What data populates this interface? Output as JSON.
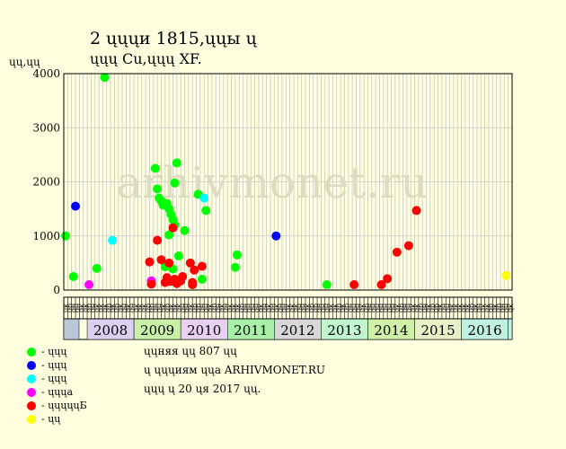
{
  "chart_data": {
    "type": "scatter",
    "title": "2 ųųųи 1815,ųųы ų",
    "subtitle": "ųųų Cu,ųųų XF.",
    "ylabel": "ųų,ųų",
    "watermark": "arhivmonet.ru",
    "ylim": [
      0,
      4000
    ],
    "yticks": [
      0,
      1000,
      2000,
      3000,
      4000
    ],
    "grid": true,
    "x_unit": "month",
    "x_start": "2007-07",
    "x_end": "2017-01",
    "month_codes": [
      "ųк",
      "ųр",
      "ųн",
      "ųн",
      "ųк",
      "ųк",
      "ųр",
      "ųн",
      "ųк",
      "ųк",
      "ųк",
      "ųр",
      "ųк",
      "ųр",
      "ųк",
      "ųн",
      "ųк",
      "ųн",
      "ųк",
      "ųк",
      "ųк",
      "ųр",
      "ųр",
      "ųн",
      "ųн",
      "ųк",
      "ųр",
      "ųк",
      "ųк",
      "ųк",
      "ųн",
      "ųн",
      "ųк",
      "ųр",
      "ųр",
      "ųн",
      "ųн",
      "ųк",
      "ųр",
      "ųн",
      "ųк",
      "ųн",
      "ųк",
      "ųк",
      "ųк",
      "ųр",
      "ųн",
      "ųн",
      "ųн",
      "ųн",
      "ųк",
      "ųн",
      "ųк",
      "ųн",
      "ųк",
      "ųн",
      "ųн",
      "ųк",
      "ųк",
      "ųк",
      "ųн",
      "ųн",
      "ųк",
      "ųр",
      "ųр",
      "ųн",
      "ųн",
      "ųн",
      "ųк",
      "ųк",
      "ųр",
      "ųк",
      "ųр",
      "ųн",
      "ųн",
      "ųн",
      "ųк",
      "ųр",
      "ųн",
      "ųн",
      "ųн",
      "ųн",
      "ųн",
      "ųн",
      "ųн",
      "ųк",
      "ųр",
      "ųн",
      "ųн",
      "ųк",
      "ųк",
      "ųр",
      "ųн",
      "ųк",
      "ųр",
      "ųр",
      "ųк",
      "ųн",
      "ųн",
      "ųк",
      "ųк",
      "ųк",
      "ųк",
      "ųк",
      "ųр",
      "ųк",
      "ųн",
      "ųк",
      "ųк",
      "ųр",
      "ųк",
      "ųр",
      "ųн",
      "ųн",
      "ųк"
    ],
    "years": [
      {
        "label": "2008",
        "color": "#dcd0f0"
      },
      {
        "label": "2009",
        "color": "#c8f0a8"
      },
      {
        "label": "2010",
        "color": "#e8d0f0"
      },
      {
        "label": "2011",
        "color": "#a8f0a8"
      },
      {
        "label": "2012",
        "color": "#d8d8d8"
      },
      {
        "label": "2013",
        "color": "#c0f5d0"
      },
      {
        "label": "2014",
        "color": "#d0f0a8"
      },
      {
        "label": "2015",
        "color": "#e8f0c8"
      },
      {
        "label": "2016",
        "color": "#c0f0e0"
      }
    ],
    "series": [
      {
        "name": "- ųųų",
        "color": "#00ff00",
        "points": [
          [
            "2007-07-15",
            1000
          ],
          [
            "2007-09-15",
            250
          ],
          [
            "2008-03-15",
            400
          ],
          [
            "2008-05-15",
            3930
          ],
          [
            "2009-06-15",
            2250
          ],
          [
            "2009-07-01",
            1870
          ],
          [
            "2009-07-15",
            1700
          ],
          [
            "2009-08-01",
            1650
          ],
          [
            "2009-08-15",
            1570
          ],
          [
            "2009-09-01",
            430
          ],
          [
            "2009-09-15",
            1600
          ],
          [
            "2009-10-01",
            1500
          ],
          [
            "2009-10-01",
            1020
          ],
          [
            "2009-10-15",
            1400
          ],
          [
            "2009-11-01",
            1300
          ],
          [
            "2009-11-01",
            390
          ],
          [
            "2009-11-15",
            1980
          ],
          [
            "2009-11-15",
            1200
          ],
          [
            "2009-12-01",
            2350
          ],
          [
            "2009-12-15",
            630
          ],
          [
            "2010-02-01",
            1100
          ],
          [
            "2010-05-15",
            1770
          ],
          [
            "2010-06-15",
            200
          ],
          [
            "2010-07-15",
            1470
          ],
          [
            "2011-03-15",
            650
          ],
          [
            "2011-03-01",
            420
          ],
          [
            "2013-02-15",
            100
          ]
        ]
      },
      {
        "name": "- ųųų",
        "color": "#0000ff",
        "points": [
          [
            "2007-10-01",
            1550
          ],
          [
            "2012-01-15",
            1000
          ]
        ]
      },
      {
        "name": "- ųųų",
        "color": "#00ffff",
        "points": [
          [
            "2008-07-15",
            920
          ],
          [
            "2010-07-01",
            1700
          ]
        ]
      },
      {
        "name": "- ųųųа",
        "color": "#ff00ff",
        "points": [
          [
            "2008-01-15",
            100
          ],
          [
            "2009-05-15",
            170
          ]
        ]
      },
      {
        "name": "- ųųųųųБ",
        "color": "#ff0000",
        "points": [
          [
            "2009-05-01",
            520
          ],
          [
            "2009-05-15",
            110
          ],
          [
            "2009-07-01",
            920
          ],
          [
            "2009-08-01",
            560
          ],
          [
            "2009-09-01",
            140
          ],
          [
            "2009-09-15",
            230
          ],
          [
            "2009-10-01",
            500
          ],
          [
            "2009-10-15",
            160
          ],
          [
            "2009-11-01",
            1150
          ],
          [
            "2009-11-15",
            200
          ],
          [
            "2009-12-01",
            120
          ],
          [
            "2010-01-01",
            170
          ],
          [
            "2010-01-15",
            250
          ],
          [
            "2010-03-15",
            500
          ],
          [
            "2010-04-01",
            100
          ],
          [
            "2010-04-01",
            140
          ],
          [
            "2010-04-15",
            370
          ],
          [
            "2010-06-15",
            440
          ],
          [
            "2013-09-15",
            100
          ],
          [
            "2014-04-15",
            100
          ],
          [
            "2014-06-01",
            210
          ],
          [
            "2014-08-15",
            700
          ],
          [
            "2014-11-15",
            820
          ],
          [
            "2015-01-15",
            1470
          ]
        ]
      },
      {
        "name": "- ųų",
        "color": "#ffff00",
        "points": [
          [
            "2016-12-15",
            270
          ]
        ]
      }
    ],
    "notes": [
      "ųųняя ųų 807 ųų",
      "ų ųųųиям ųųа ARHIVMONET.RU",
      "ųųų ų 20 ųя 2017 ųų."
    ]
  }
}
